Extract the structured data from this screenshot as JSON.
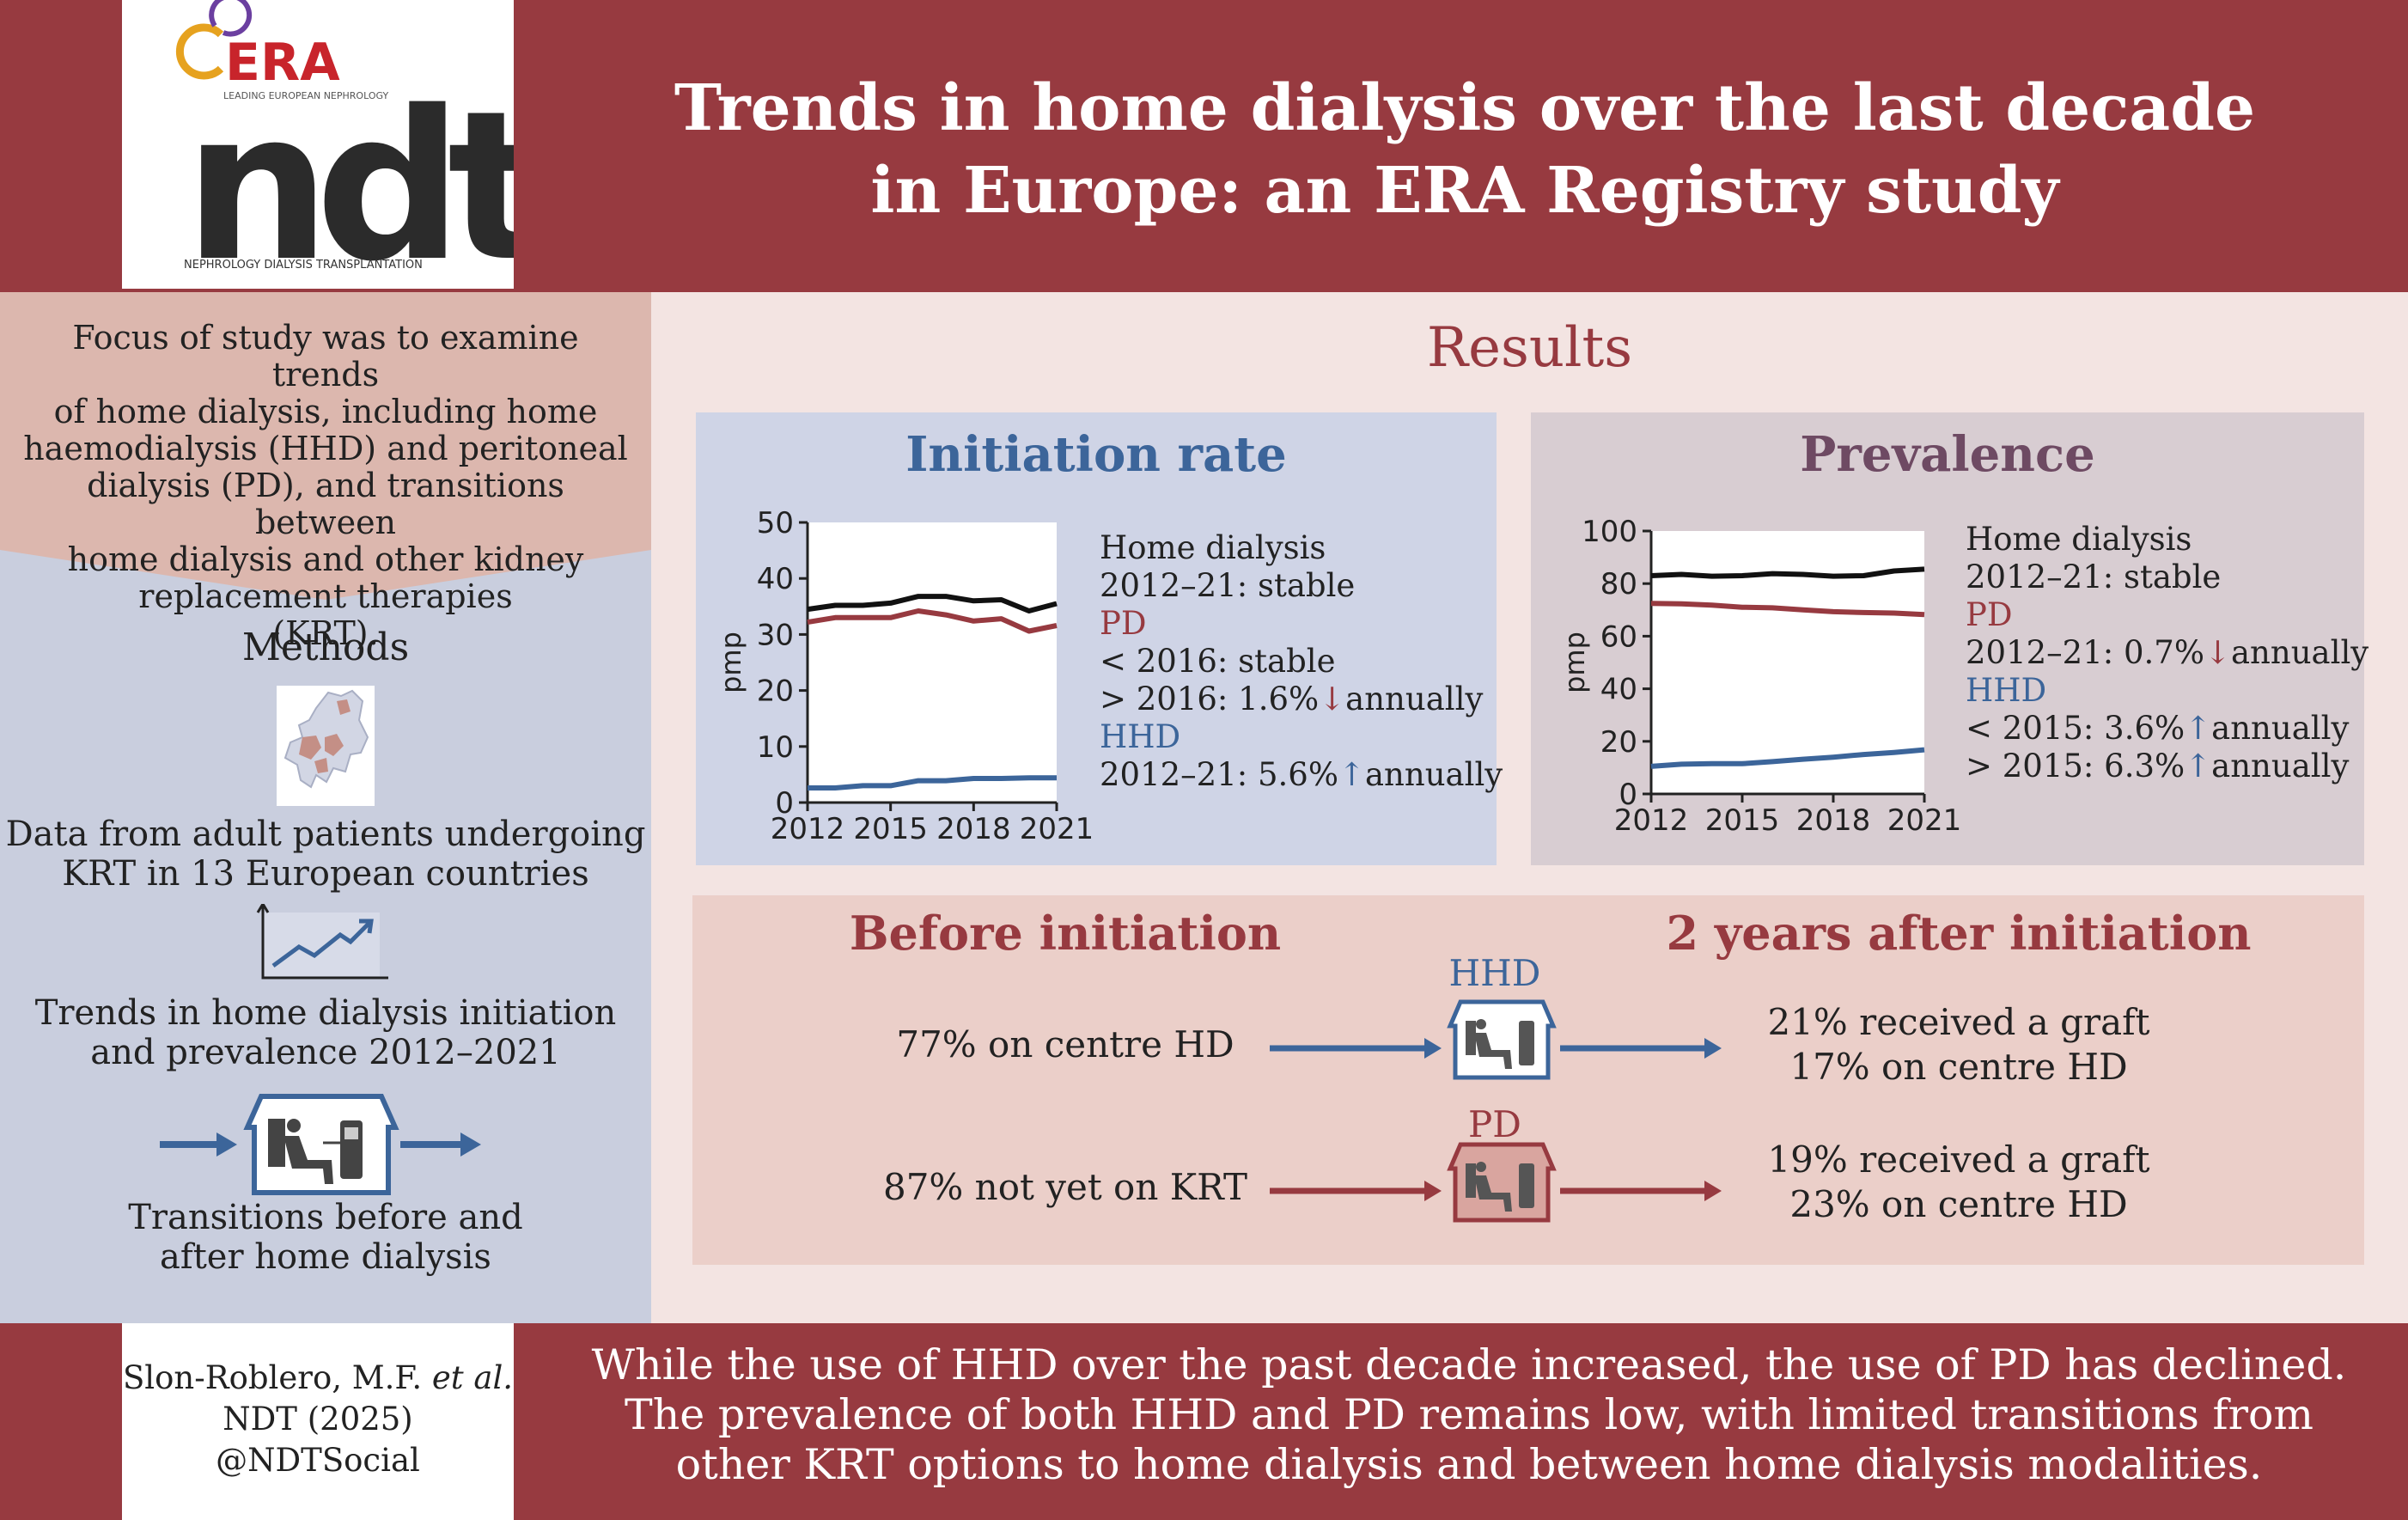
{
  "header": {
    "title_line1": "Trends in home dialysis over the last decade",
    "title_line2": "in Europe: an ERA Registry study",
    "logo_era": "ERA",
    "logo_era_tagline": "LEADING EUROPEAN NEPHROLOGY",
    "logo_ndt": "ndt",
    "logo_subtitle": "NEPHROLOGY DIALYSIS TRANSPLANTATION"
  },
  "left": {
    "focus_lines": [
      "Focus of study was to examine trends",
      "of home dialysis, including home",
      "haemodialysis (HHD) and peritoneal",
      "dialysis (PD), and transitions between",
      "home dialysis and other kidney",
      "replacement therapies",
      "(KRT)."
    ],
    "methods_heading": "Methods",
    "data_lines": [
      "Data from adult patients undergoing",
      "KRT in 13 European countries"
    ],
    "trends_lines": [
      "Trends in home dialysis initiation",
      "and prevalence 2012–2021"
    ],
    "transitions_lines": [
      "Transitions before and",
      "after home dialysis"
    ]
  },
  "results_heading": "Results",
  "initiation": {
    "heading": "Initiation rate",
    "annotations": {
      "home_label": "Home dialysis",
      "home_value": "2012–21: stable",
      "pd_label": "PD",
      "pd_v1": "< 2016: stable",
      "pd_v2_pre": "> 2016: 1.6%",
      "pd_v2_post": "annually",
      "hhd_label": "HHD",
      "hhd_v1_pre": "2012–21: 5.6%",
      "hhd_v1_post": "annually"
    }
  },
  "prevalence": {
    "heading": "Prevalence",
    "annotations": {
      "home_label": "Home dialysis",
      "home_value": "2012–21: stable",
      "pd_label": "PD",
      "pd_v1_pre": "2012–21: 0.7%",
      "pd_v1_post": "annually",
      "hhd_label": "HHD",
      "hhd_v1_pre": "< 2015: 3.6%",
      "hhd_v1_post": "annually",
      "hhd_v2_pre": "> 2015: 6.3%",
      "hhd_v2_post": "annually"
    }
  },
  "arrows": {
    "down": "↓",
    "up": "↑"
  },
  "transitions": {
    "before_heading": "Before initiation",
    "after_heading": "2 years after initiation",
    "hhd_label": "HHD",
    "hhd_before": "77% on centre HD",
    "hhd_after_1": "21% received a graft",
    "hhd_after_2": "17% on centre HD",
    "pd_label": "PD",
    "pd_before": "87% not yet on KRT",
    "pd_after_1": "19% received a graft",
    "pd_after_2": "23% on centre HD"
  },
  "footer": {
    "cite_1": "Slon-Roblero, M.F.",
    "cite_1b": "et al.",
    "cite_2": "NDT (2025)",
    "cite_3": "@NDTSocial",
    "conclusion": [
      "While the use of HHD over the past decade increased, the use of PD has declined.",
      "The prevalence of both HHD and PD remains low, with limited transitions from",
      "other KRT options to home dialysis and between home dialysis modalities."
    ]
  },
  "colors": {
    "brand_red": "#973a40",
    "hhd_blue": "#3c659a",
    "home_black": "#111111"
  },
  "chart_data": [
    {
      "type": "line",
      "ylabel": "pmp",
      "ylim": [
        0,
        50
      ],
      "yticks": [
        0,
        10,
        20,
        30,
        40,
        50
      ],
      "xticks": [
        2012,
        2015,
        2018,
        2021
      ],
      "x": [
        2012,
        2013,
        2014,
        2015,
        2016,
        2017,
        2018,
        2019,
        2020,
        2021
      ],
      "grid": false,
      "series": [
        {
          "key": "home",
          "color": "#111111",
          "values": [
            34.5,
            35.2,
            35.2,
            35.6,
            36.8,
            36.8,
            36.0,
            36.2,
            34.2,
            35.5
          ]
        },
        {
          "key": "pd",
          "color": "#973a40",
          "values": [
            32.2,
            33.0,
            33.0,
            33.0,
            34.2,
            33.5,
            32.4,
            32.8,
            30.6,
            31.6
          ]
        },
        {
          "key": "hhd",
          "color": "#3c659a",
          "values": [
            2.6,
            2.6,
            3.0,
            3.0,
            3.9,
            3.9,
            4.3,
            4.3,
            4.4,
            4.4
          ]
        }
      ]
    },
    {
      "type": "line",
      "ylabel": "pmp",
      "ylim": [
        0,
        100
      ],
      "yticks": [
        0,
        20,
        40,
        60,
        80,
        100
      ],
      "xticks": [
        2012,
        2015,
        2018,
        2021
      ],
      "x": [
        2012,
        2013,
        2014,
        2015,
        2016,
        2017,
        2018,
        2019,
        2020,
        2021
      ],
      "grid": false,
      "series": [
        {
          "key": "home",
          "color": "#111111",
          "values": [
            83.0,
            83.5,
            82.8,
            83.0,
            83.8,
            83.5,
            82.8,
            83.0,
            84.8,
            85.5
          ]
        },
        {
          "key": "pd",
          "color": "#973a40",
          "values": [
            72.5,
            72.3,
            71.8,
            71.0,
            70.8,
            70.0,
            69.3,
            69.0,
            68.8,
            68.2
          ]
        },
        {
          "key": "hhd",
          "color": "#3c659a",
          "values": [
            10.5,
            11.3,
            11.5,
            11.5,
            12.3,
            13.2,
            14.0,
            15.0,
            15.8,
            16.8
          ]
        }
      ]
    }
  ]
}
